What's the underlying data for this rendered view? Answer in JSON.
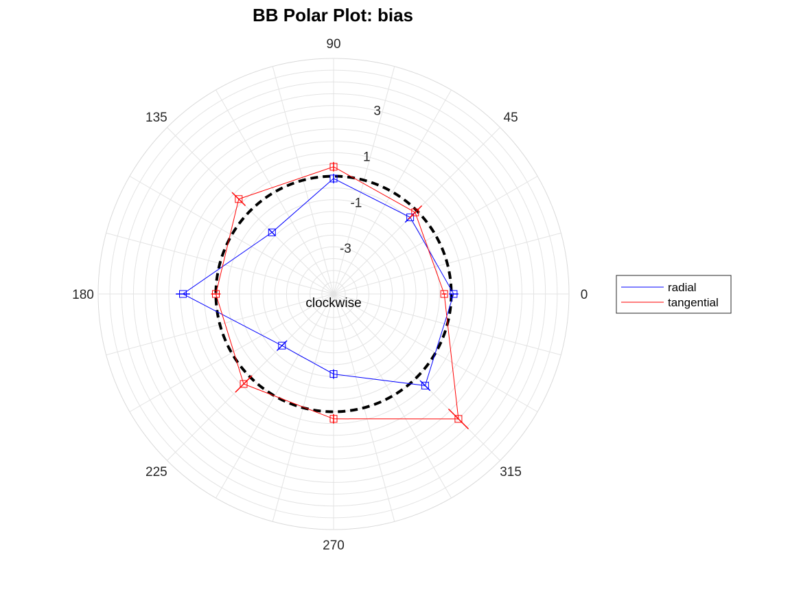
{
  "chart_data": {
    "type": "polar-line",
    "title": "BB Polar Plot: bias",
    "theta_ticks": [
      0,
      45,
      90,
      135,
      180,
      225,
      270,
      315
    ],
    "theta_tick_labels": [
      "0",
      "45",
      "90",
      "135",
      "180",
      "225",
      "270",
      "315"
    ],
    "r_tick_labels": [
      "3",
      "1",
      "-1",
      "-3"
    ],
    "r_tick_values": [
      3,
      1,
      -1,
      -3
    ],
    "rlim": [
      -5,
      5
    ],
    "grid": true,
    "annotation": "clockwise",
    "reference_circle": {
      "r": 0,
      "style": "dashed",
      "color": "#000000"
    },
    "series": [
      {
        "name": "radial",
        "color": "#0000ff",
        "theta": [
          0,
          45,
          90,
          135,
          180,
          225,
          270,
          315
        ],
        "r": [
          0.1,
          -0.4,
          -0.1,
          -1.3,
          1.4,
          -1.9,
          -1.6,
          0.5
        ],
        "errors": [
          0.2,
          0.3,
          0.2,
          0.2,
          0.3,
          0.3,
          0.2,
          0.3
        ]
      },
      {
        "name": "tangential",
        "color": "#ff0000",
        "theta": [
          0,
          45,
          90,
          135,
          180,
          225,
          270,
          315
        ],
        "r": [
          -0.3,
          -0.1,
          0.4,
          0.7,
          0.0,
          0.4,
          0.3,
          2.5
        ],
        "errors": [
          0.1,
          0.4,
          0.2,
          0.4,
          0.2,
          0.5,
          0.2,
          0.6
        ]
      }
    ]
  },
  "legend": {
    "position": "right",
    "items": [
      "radial",
      "tangential"
    ]
  }
}
